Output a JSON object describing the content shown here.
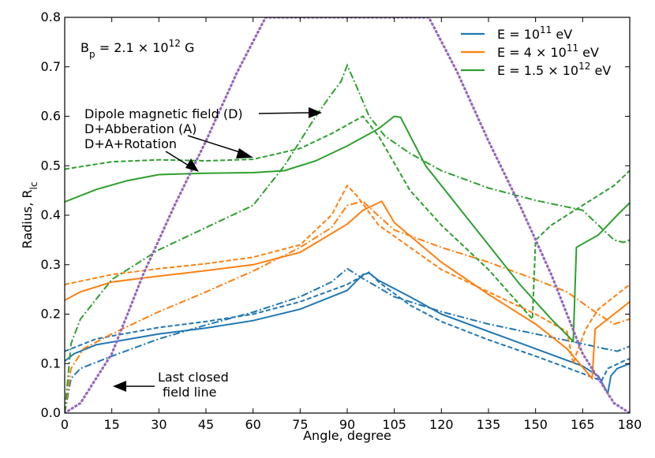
{
  "chart_data": {
    "type": "line",
    "title": "",
    "xlabel": "Angle, degree",
    "ylabel": "Radius, R_lc",
    "ylabel_main": "Radius, R",
    "ylabel_sub": "lc",
    "xlim": [
      0,
      180
    ],
    "ylim": [
      0,
      0.8
    ],
    "xticks": [
      0,
      15,
      30,
      45,
      60,
      75,
      90,
      105,
      120,
      135,
      150,
      165,
      180
    ],
    "yticks": [
      0.0,
      0.1,
      0.2,
      0.3,
      0.4,
      0.5,
      0.6,
      0.7,
      0.8
    ],
    "ytick_labels": [
      "0.0",
      "0.1",
      "0.2",
      "0.3",
      "0.4",
      "0.5",
      "0.6",
      "0.7",
      "0.8"
    ],
    "field_annotation": "B_p = 2.1 × 10^12 G",
    "legend_position": "top-right",
    "legend": [
      {
        "label": "E = 10^11 eV",
        "color": "#1f77b4"
      },
      {
        "label": "E = 4 × 10^11 eV",
        "color": "#ff7f0e"
      },
      {
        "label": "E = 1.5 × 10^12 eV",
        "color": "#2ca02c"
      }
    ],
    "line_styles": [
      {
        "label": "Dipole magnetic field (D)",
        "style": "dashdot"
      },
      {
        "label": "D+Abberation (A)",
        "style": "dashed"
      },
      {
        "label": "D+A+Rotation",
        "style": "solid"
      }
    ],
    "annotations": [
      {
        "text": "Dipole magnetic field (D)"
      },
      {
        "text": "D+Abberation (A)"
      },
      {
        "text": "D+A+Rotation"
      },
      {
        "text": "Last closed"
      },
      {
        "text": "field line"
      }
    ],
    "series": [
      {
        "name": "E=1e11 dipole",
        "energy": "E = 10^11 eV",
        "style": "dashdot",
        "color": "#1f77b4",
        "points": [
          [
            0,
            0
          ],
          [
            2,
            0.07
          ],
          [
            5,
            0.09
          ],
          [
            15,
            0.115
          ],
          [
            30,
            0.15
          ],
          [
            45,
            0.178
          ],
          [
            60,
            0.204
          ],
          [
            75,
            0.235
          ],
          [
            85,
            0.265
          ],
          [
            90,
            0.292
          ],
          [
            95,
            0.272
          ],
          [
            105,
            0.235
          ],
          [
            120,
            0.205
          ],
          [
            135,
            0.18
          ],
          [
            150,
            0.16
          ],
          [
            165,
            0.14
          ],
          [
            172,
            0.13
          ],
          [
            176,
            0.125
          ],
          [
            180,
            0.135
          ]
        ]
      },
      {
        "name": "E=1e11 aberration",
        "energy": "E = 10^11 eV",
        "style": "dashed",
        "color": "#1f77b4",
        "points": [
          [
            0,
            0.125
          ],
          [
            10,
            0.15
          ],
          [
            30,
            0.173
          ],
          [
            45,
            0.185
          ],
          [
            60,
            0.2
          ],
          [
            75,
            0.225
          ],
          [
            90,
            0.26
          ],
          [
            97,
            0.285
          ],
          [
            100,
            0.265
          ],
          [
            110,
            0.218
          ],
          [
            120,
            0.185
          ],
          [
            135,
            0.148
          ],
          [
            150,
            0.115
          ],
          [
            165,
            0.08
          ],
          [
            171,
            0.065
          ],
          [
            173,
            0.09
          ],
          [
            178,
            0.105
          ],
          [
            180,
            0.11
          ]
        ]
      },
      {
        "name": "E=1e11 rotation",
        "energy": "E = 10^11 eV",
        "style": "solid",
        "color": "#1f77b4",
        "points": [
          [
            0,
            0.105
          ],
          [
            3,
            0.12
          ],
          [
            10,
            0.138
          ],
          [
            30,
            0.16
          ],
          [
            45,
            0.172
          ],
          [
            60,
            0.187
          ],
          [
            75,
            0.21
          ],
          [
            90,
            0.248
          ],
          [
            95,
            0.28
          ],
          [
            97,
            0.283
          ],
          [
            100,
            0.268
          ],
          [
            110,
            0.235
          ],
          [
            120,
            0.2
          ],
          [
            135,
            0.165
          ],
          [
            150,
            0.13
          ],
          [
            165,
            0.095
          ],
          [
            170,
            0.075
          ],
          [
            173,
            0.04
          ],
          [
            174,
            0.075
          ],
          [
            176,
            0.09
          ],
          [
            180,
            0.1
          ]
        ]
      },
      {
        "name": "E=4e11 dipole",
        "energy": "E = 4 × 10^11 eV",
        "style": "dashdot",
        "color": "#ff7f0e",
        "points": [
          [
            0,
            0
          ],
          [
            2,
            0.09
          ],
          [
            6,
            0.13
          ],
          [
            15,
            0.16
          ],
          [
            30,
            0.205
          ],
          [
            45,
            0.245
          ],
          [
            60,
            0.287
          ],
          [
            75,
            0.335
          ],
          [
            85,
            0.375
          ],
          [
            90,
            0.42
          ],
          [
            95,
            0.428
          ],
          [
            98,
            0.41
          ],
          [
            105,
            0.37
          ],
          [
            120,
            0.335
          ],
          [
            135,
            0.305
          ],
          [
            150,
            0.27
          ],
          [
            160,
            0.245
          ],
          [
            170,
            0.2
          ],
          [
            175,
            0.18
          ],
          [
            180,
            0.19
          ]
        ]
      },
      {
        "name": "E=4e11 aberration",
        "energy": "E = 4 × 10^11 eV",
        "style": "dashed",
        "color": "#ff7f0e",
        "points": [
          [
            0,
            0.26
          ],
          [
            15,
            0.28
          ],
          [
            30,
            0.292
          ],
          [
            45,
            0.302
          ],
          [
            60,
            0.315
          ],
          [
            75,
            0.34
          ],
          [
            85,
            0.4
          ],
          [
            90,
            0.46
          ],
          [
            93,
            0.44
          ],
          [
            100,
            0.38
          ],
          [
            110,
            0.335
          ],
          [
            120,
            0.29
          ],
          [
            135,
            0.245
          ],
          [
            150,
            0.2
          ],
          [
            160,
            0.165
          ],
          [
            162,
            0.1
          ],
          [
            163,
            0.12
          ],
          [
            166,
            0.17
          ],
          [
            170,
            0.21
          ],
          [
            175,
            0.235
          ],
          [
            180,
            0.26
          ]
        ]
      },
      {
        "name": "E=4e11 rotation",
        "energy": "E = 4 × 10^11 eV",
        "style": "solid",
        "color": "#ff7f0e",
        "points": [
          [
            0,
            0.228
          ],
          [
            5,
            0.245
          ],
          [
            15,
            0.265
          ],
          [
            30,
            0.277
          ],
          [
            45,
            0.288
          ],
          [
            60,
            0.3
          ],
          [
            75,
            0.325
          ],
          [
            90,
            0.382
          ],
          [
            95,
            0.41
          ],
          [
            101,
            0.428
          ],
          [
            105,
            0.385
          ],
          [
            120,
            0.305
          ],
          [
            135,
            0.24
          ],
          [
            150,
            0.18
          ],
          [
            160,
            0.13
          ],
          [
            168,
            0.07
          ],
          [
            169,
            0.17
          ],
          [
            175,
            0.2
          ],
          [
            180,
            0.225
          ]
        ]
      },
      {
        "name": "E=1.5e12 dipole",
        "energy": "E = 1.5 × 10^12 eV",
        "style": "dashdot",
        "color": "#2ca02c",
        "points": [
          [
            0,
            0
          ],
          [
            2,
            0.14
          ],
          [
            5,
            0.19
          ],
          [
            15,
            0.27
          ],
          [
            30,
            0.33
          ],
          [
            45,
            0.375
          ],
          [
            60,
            0.42
          ],
          [
            70,
            0.5
          ],
          [
            80,
            0.6
          ],
          [
            85,
            0.645
          ],
          [
            88,
            0.67
          ],
          [
            90,
            0.703
          ],
          [
            93,
            0.66
          ],
          [
            97,
            0.6
          ],
          [
            102,
            0.56
          ],
          [
            110,
            0.525
          ],
          [
            120,
            0.49
          ],
          [
            135,
            0.455
          ],
          [
            150,
            0.43
          ],
          [
            165,
            0.41
          ],
          [
            170,
            0.38
          ],
          [
            175,
            0.35
          ],
          [
            178,
            0.345
          ],
          [
            180,
            0.35
          ]
        ]
      },
      {
        "name": "E=1.5e12 aberration",
        "energy": "E = 1.5 × 10^12 eV",
        "style": "dashed",
        "color": "#2ca02c",
        "points": [
          [
            0,
            0.493
          ],
          [
            15,
            0.508
          ],
          [
            30,
            0.512
          ],
          [
            45,
            0.51
          ],
          [
            60,
            0.513
          ],
          [
            75,
            0.535
          ],
          [
            85,
            0.565
          ],
          [
            95,
            0.6
          ],
          [
            100,
            0.56
          ],
          [
            110,
            0.45
          ],
          [
            120,
            0.38
          ],
          [
            135,
            0.29
          ],
          [
            149,
            0.19
          ],
          [
            150,
            0.35
          ],
          [
            155,
            0.38
          ],
          [
            165,
            0.42
          ],
          [
            175,
            0.46
          ],
          [
            180,
            0.49
          ]
        ]
      },
      {
        "name": "E=1.5e12 rotation",
        "energy": "E = 1.5 × 10^12 eV",
        "style": "solid",
        "color": "#2ca02c",
        "points": [
          [
            0,
            0.427
          ],
          [
            10,
            0.452
          ],
          [
            20,
            0.47
          ],
          [
            30,
            0.482
          ],
          [
            45,
            0.485
          ],
          [
            60,
            0.486
          ],
          [
            70,
            0.49
          ],
          [
            80,
            0.51
          ],
          [
            90,
            0.54
          ],
          [
            100,
            0.575
          ],
          [
            105,
            0.6
          ],
          [
            107,
            0.598
          ],
          [
            115,
            0.5
          ],
          [
            125,
            0.42
          ],
          [
            135,
            0.34
          ],
          [
            145,
            0.26
          ],
          [
            155,
            0.19
          ],
          [
            162,
            0.145
          ],
          [
            163,
            0.335
          ],
          [
            170,
            0.36
          ],
          [
            176,
            0.4
          ],
          [
            180,
            0.425
          ]
        ]
      },
      {
        "name": "Last closed field line",
        "style": "dotted",
        "color": "#9467bd",
        "points": [
          [
            0,
            0
          ],
          [
            5,
            0.02
          ],
          [
            15,
            0.12
          ],
          [
            25,
            0.28
          ],
          [
            35,
            0.42
          ],
          [
            45,
            0.55
          ],
          [
            55,
            0.69
          ],
          [
            64,
            0.8
          ],
          [
            116,
            0.8
          ],
          [
            125,
            0.69
          ],
          [
            135,
            0.55
          ],
          [
            145,
            0.42
          ],
          [
            155,
            0.28
          ],
          [
            165,
            0.12
          ],
          [
            175,
            0.02
          ],
          [
            180,
            0
          ]
        ]
      }
    ]
  }
}
